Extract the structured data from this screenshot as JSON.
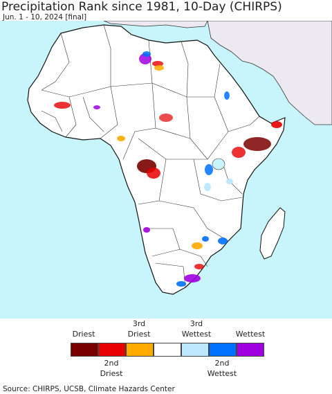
{
  "header": {
    "title": "Precipitation Rank since 1981, 10-Day (CHIRPS)",
    "subtitle": "Jun. 1 - 10, 2024 [final]"
  },
  "map": {
    "colors": {
      "ocean": "#c8f5fb",
      "land": "#ffffff",
      "outside_region": "#ece9f0",
      "border": "#222222"
    }
  },
  "legend": {
    "top_labels": {
      "driest": "Driest",
      "third_driest": "3rd\nDriest",
      "third_wettest": "3rd\nWettest",
      "wettest": "Wettest"
    },
    "bottom_labels": {
      "second_driest": "2nd\nDriest",
      "second_wettest": "2nd\nWettest"
    },
    "swatches": [
      {
        "name": "driest",
        "color": "#7a0000"
      },
      {
        "name": "second-driest",
        "color": "#e60000"
      },
      {
        "name": "third-driest",
        "color": "#ffaa00"
      },
      {
        "name": "normal",
        "color": "#ffffff"
      },
      {
        "name": "third-wettest",
        "color": "#bee8ff"
      },
      {
        "name": "second-wettest",
        "color": "#0070ff"
      },
      {
        "name": "wettest",
        "color": "#a000e0"
      }
    ]
  },
  "footer": {
    "source": "Source: CHIRPS, UCSB, Climate Hazards Center"
  }
}
